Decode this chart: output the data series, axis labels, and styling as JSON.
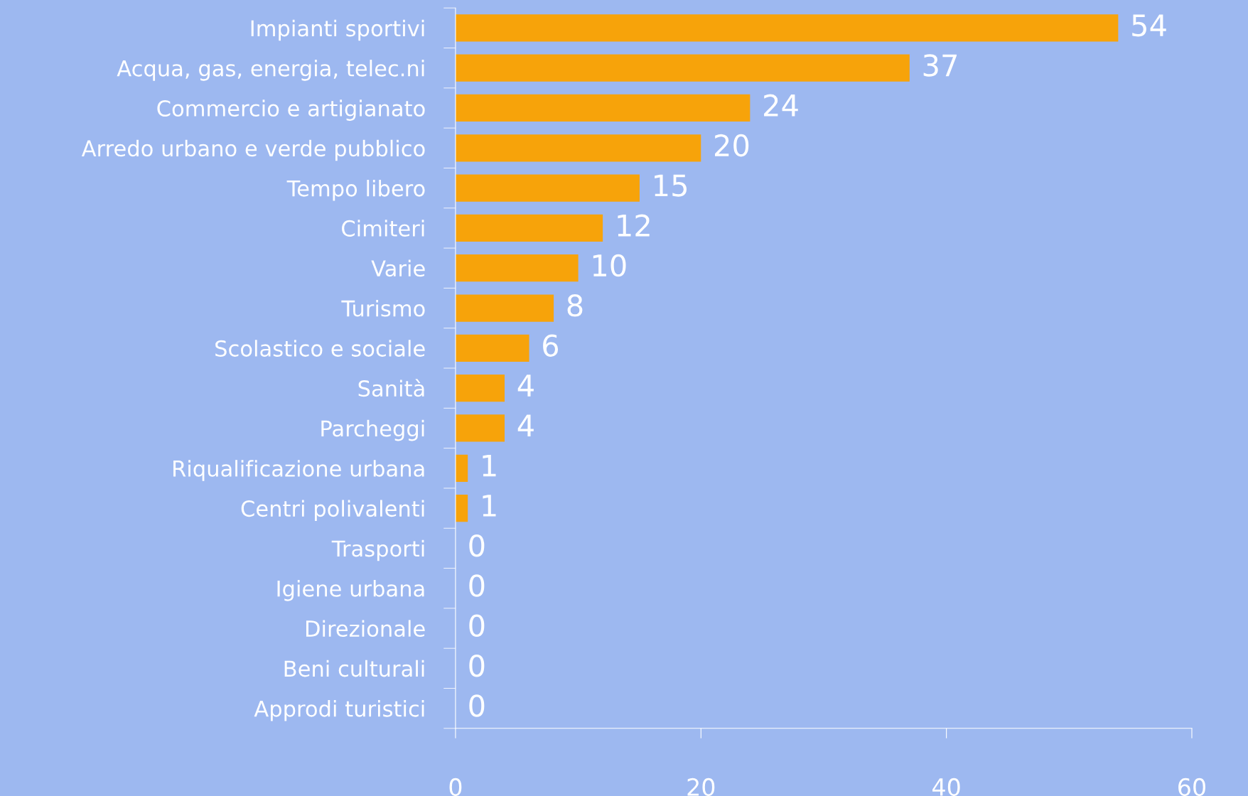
{
  "chart_data": {
    "type": "bar",
    "orientation": "horizontal",
    "categories": [
      "Impianti sportivi",
      "Acqua, gas, energia, telec.ni",
      "Commercio e artigianato",
      "Arredo urbano e verde pubblico",
      "Tempo libero",
      "Cimiteri",
      "Varie",
      "Turismo",
      "Scolastico e sociale",
      "Sanità",
      "Parcheggi",
      "Riqualificazione urbana",
      "Centri polivalenti",
      "Trasporti",
      "Igiene urbana",
      "Direzionale",
      "Beni culturali",
      "Approdi turistici"
    ],
    "values": [
      54,
      37,
      24,
      20,
      15,
      12,
      10,
      8,
      6,
      4,
      4,
      1,
      1,
      0,
      0,
      0,
      0,
      0
    ],
    "color": "#f7a30a",
    "xlim": [
      0,
      60
    ],
    "xticks": [
      0,
      20,
      40,
      60
    ],
    "data_labels": true,
    "grid": false,
    "legend": false
  }
}
